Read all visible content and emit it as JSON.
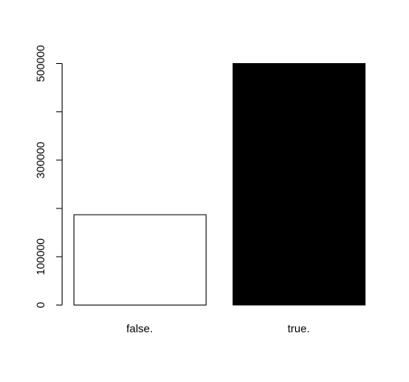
{
  "chart_data": {
    "type": "bar",
    "categories": [
      "false.",
      "true."
    ],
    "values": [
      187000,
      500000
    ],
    "colors": [
      "#ffffff",
      "#000000"
    ],
    "bar_border": "#000000",
    "ylim": [
      0,
      500000
    ],
    "yticks": [
      0,
      100000,
      200000,
      300000,
      400000,
      500000
    ],
    "ytick_labels": [
      "0",
      "100000",
      "",
      "300000",
      "",
      "500000"
    ],
    "grid": false,
    "legend": "none"
  }
}
